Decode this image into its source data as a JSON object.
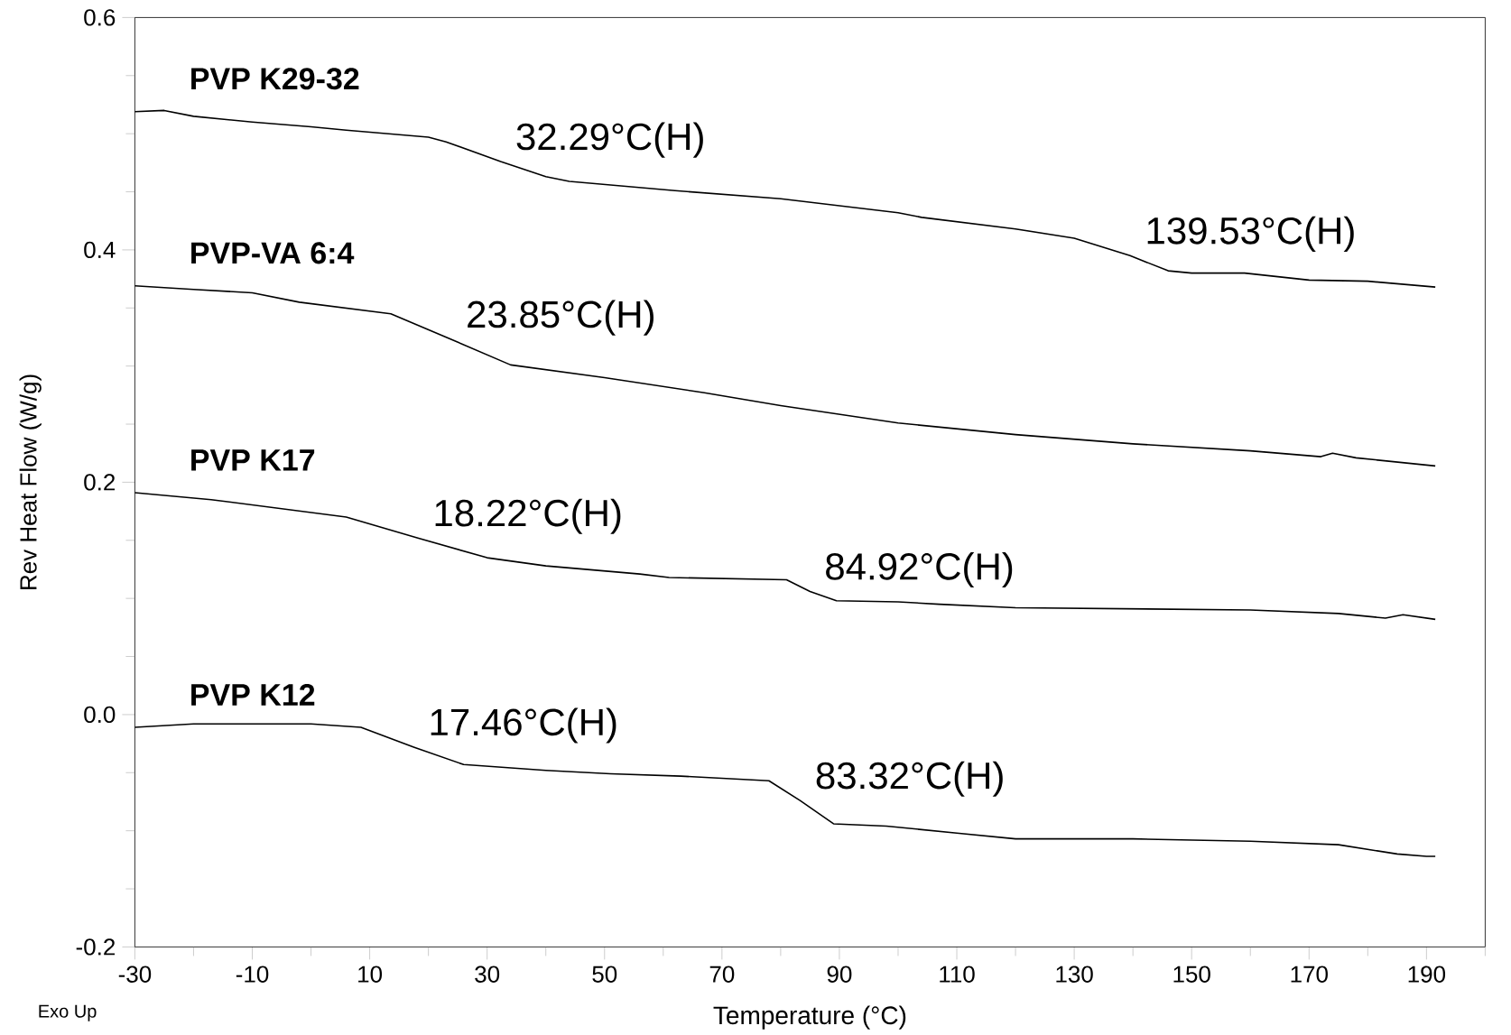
{
  "chart_data": {
    "type": "line",
    "xlabel": "Temperature (°C)",
    "ylabel": "Rev Heat Flow (W/g)",
    "xlim": [
      -30,
      200
    ],
    "ylim": [
      -0.2,
      0.6
    ],
    "xticks": [
      -30,
      {
        "value": -20,
        "label": null
      },
      -10,
      {
        "value": 0,
        "label": null
      },
      10,
      {
        "value": 20,
        "label": null
      },
      30,
      {
        "value": 40,
        "label": null
      },
      50,
      {
        "value": 60,
        "label": null
      },
      70,
      {
        "value": 80,
        "label": null
      },
      90,
      {
        "value": 100,
        "label": null
      },
      110,
      {
        "value": 120,
        "label": null
      },
      130,
      {
        "value": 140,
        "label": null
      },
      150,
      {
        "value": 160,
        "label": null
      },
      170,
      {
        "value": 180,
        "label": null
      },
      190,
      {
        "value": 200,
        "label": null
      }
    ],
    "yticks": [
      -0.2,
      {
        "value": -0.15,
        "label": null
      },
      {
        "value": -0.1,
        "label": null
      },
      {
        "value": -0.05,
        "label": null
      },
      {
        "value": 0,
        "label": "0.0"
      },
      {
        "value": 0.05,
        "label": null
      },
      {
        "value": 0.1,
        "label": null
      },
      {
        "value": 0.15,
        "label": null
      },
      0.2,
      {
        "value": 0.25,
        "label": null
      },
      {
        "value": 0.3,
        "label": null
      },
      {
        "value": 0.35,
        "label": null
      },
      0.4,
      {
        "value": 0.45,
        "label": null
      },
      {
        "value": 0.5,
        "label": null
      },
      {
        "value": 0.55,
        "label": null
      },
      0.6
    ],
    "series": [
      {
        "name": "PVP K29-32",
        "color": "#000000",
        "x": [
          -30,
          -25,
          -20,
          -10,
          0,
          6,
          20,
          23,
          32.3,
          40,
          44,
          62,
          80,
          100,
          104,
          120,
          130,
          139.5,
          146,
          150,
          159,
          170,
          180,
          191.5
        ],
        "values": [
          0.519,
          0.52,
          0.515,
          0.51,
          0.506,
          0.503,
          0.497,
          0.493,
          0.476,
          0.463,
          0.459,
          0.451,
          0.444,
          0.432,
          0.428,
          0.418,
          0.41,
          0.395,
          0.382,
          0.38,
          0.38,
          0.374,
          0.373,
          0.368
        ]
      },
      {
        "name": "PVP-VA 6:4",
        "color": "#000000",
        "x": [
          -30,
          -20,
          -10,
          -2,
          13.6,
          23.85,
          34,
          50,
          67,
          80,
          100,
          120,
          140,
          160,
          172,
          174,
          178,
          191.5
        ],
        "values": [
          0.369,
          0.366,
          0.363,
          0.355,
          0.345,
          0.323,
          0.301,
          0.29,
          0.277,
          0.266,
          0.251,
          0.241,
          0.233,
          0.227,
          0.222,
          0.225,
          0.221,
          0.214
        ]
      },
      {
        "name": "PVP K17",
        "color": "#000000",
        "x": [
          -30,
          -17,
          6,
          18.2,
          30,
          40,
          56,
          61,
          81,
          85,
          89.5,
          100,
          107,
          120,
          140,
          160,
          175,
          183,
          186,
          191.5
        ],
        "values": [
          0.191,
          0.185,
          0.17,
          0.152,
          0.135,
          0.128,
          0.121,
          0.118,
          0.116,
          0.106,
          0.098,
          0.097,
          0.095,
          0.092,
          0.091,
          0.09,
          0.087,
          0.083,
          0.086,
          0.082
        ]
      },
      {
        "name": "PVP K12",
        "color": "#000000",
        "x": [
          -30,
          -20,
          -12,
          0,
          8.5,
          17.5,
          26,
          40,
          51,
          63,
          78,
          83.3,
          89,
          98,
          110,
          120,
          140,
          160,
          175,
          185,
          190,
          191.5
        ],
        "values": [
          -0.011,
          -0.008,
          -0.008,
          -0.008,
          -0.011,
          -0.028,
          -0.043,
          -0.048,
          -0.051,
          -0.053,
          -0.057,
          -0.074,
          -0.094,
          -0.096,
          -0.102,
          -0.107,
          -0.107,
          -0.109,
          -0.112,
          -0.12,
          -0.122,
          -0.122
        ]
      }
    ],
    "annotations": [
      {
        "text": "32.29°C(H)",
        "x": 32.29,
        "y": 0.476
      },
      {
        "text": "139.53°C(H)",
        "x": 139.53,
        "y": 0.395
      },
      {
        "text": "23.85°C(H)",
        "x": 23.85,
        "y": 0.323
      },
      {
        "text": "18.22°C(H)",
        "x": 18.22,
        "y": 0.152
      },
      {
        "text": "84.92°C(H)",
        "x": 84.92,
        "y": 0.106
      },
      {
        "text": "17.46°C(H)",
        "x": 17.46,
        "y": -0.028
      },
      {
        "text": "83.32°C(H)",
        "x": 83.32,
        "y": -0.074
      },
      "Exo Up"
    ]
  }
}
